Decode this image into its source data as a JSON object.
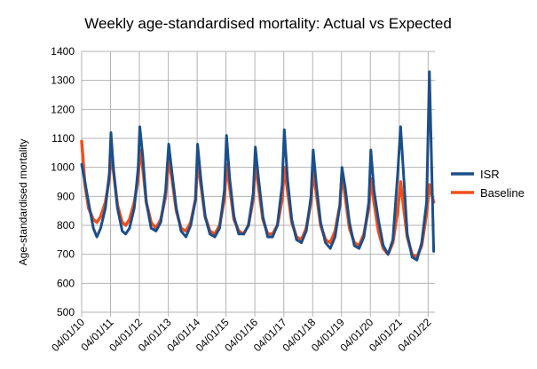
{
  "chart_data": {
    "type": "line",
    "title": "Weekly age-standardised mortality: Actual vs Expected",
    "xlabel": "",
    "ylabel": "Age-standardised mortality",
    "ylim": [
      500,
      1400
    ],
    "yticks": [
      500,
      600,
      700,
      800,
      900,
      1000,
      1100,
      1200,
      1300,
      1400
    ],
    "xticks": [
      "04/01/10",
      "04/01/11",
      "04/01/12",
      "04/01/13",
      "04/01/14",
      "04/01/15",
      "04/01/16",
      "04/01/17",
      "04/01/18",
      "04/01/19",
      "04/01/20",
      "04/01/21",
      "04/01/22"
    ],
    "xrange": [
      "2010-01-04",
      "2022-03-31"
    ],
    "grid": true,
    "legend_position": "right",
    "series": [
      {
        "name": "ISR",
        "color": "#1b4f8a",
        "points": [
          [
            "2010-01-04",
            1010
          ],
          [
            "2010-02-15",
            950
          ],
          [
            "2010-04-01",
            880
          ],
          [
            "2010-06-01",
            790
          ],
          [
            "2010-07-15",
            760
          ],
          [
            "2010-09-01",
            790
          ],
          [
            "2010-11-01",
            860
          ],
          [
            "2010-12-20",
            980
          ],
          [
            "2011-01-10",
            1120
          ],
          [
            "2011-02-15",
            980
          ],
          [
            "2011-04-01",
            860
          ],
          [
            "2011-06-01",
            780
          ],
          [
            "2011-07-15",
            770
          ],
          [
            "2011-09-01",
            790
          ],
          [
            "2011-11-01",
            860
          ],
          [
            "2011-12-20",
            1000
          ],
          [
            "2012-01-10",
            1140
          ],
          [
            "2012-02-15",
            1040
          ],
          [
            "2012-04-01",
            880
          ],
          [
            "2012-06-01",
            790
          ],
          [
            "2012-08-01",
            780
          ],
          [
            "2012-10-01",
            810
          ],
          [
            "2012-12-01",
            920
          ],
          [
            "2013-01-10",
            1080
          ],
          [
            "2013-02-20",
            980
          ],
          [
            "2013-04-15",
            860
          ],
          [
            "2013-06-15",
            780
          ],
          [
            "2013-08-15",
            760
          ],
          [
            "2013-10-15",
            800
          ],
          [
            "2013-12-15",
            890
          ],
          [
            "2014-01-10",
            1080
          ],
          [
            "2014-02-20",
            960
          ],
          [
            "2014-04-15",
            830
          ],
          [
            "2014-06-15",
            770
          ],
          [
            "2014-08-15",
            760
          ],
          [
            "2014-10-15",
            790
          ],
          [
            "2014-12-15",
            920
          ],
          [
            "2015-01-10",
            1110
          ],
          [
            "2015-02-20",
            960
          ],
          [
            "2015-04-15",
            830
          ],
          [
            "2015-06-15",
            770
          ],
          [
            "2015-08-15",
            770
          ],
          [
            "2015-10-15",
            800
          ],
          [
            "2015-12-15",
            910
          ],
          [
            "2016-01-10",
            1070
          ],
          [
            "2016-02-20",
            960
          ],
          [
            "2016-04-15",
            830
          ],
          [
            "2016-06-15",
            760
          ],
          [
            "2016-08-15",
            760
          ],
          [
            "2016-10-15",
            800
          ],
          [
            "2016-12-15",
            940
          ],
          [
            "2017-01-10",
            1130
          ],
          [
            "2017-02-20",
            960
          ],
          [
            "2017-04-15",
            820
          ],
          [
            "2017-06-15",
            750
          ],
          [
            "2017-08-15",
            740
          ],
          [
            "2017-10-15",
            780
          ],
          [
            "2017-12-15",
            900
          ],
          [
            "2018-01-10",
            1060
          ],
          [
            "2018-02-20",
            940
          ],
          [
            "2018-04-15",
            810
          ],
          [
            "2018-06-15",
            740
          ],
          [
            "2018-08-15",
            720
          ],
          [
            "2018-10-15",
            760
          ],
          [
            "2018-12-15",
            870
          ],
          [
            "2019-01-10",
            1000
          ],
          [
            "2019-02-20",
            930
          ],
          [
            "2019-04-15",
            810
          ],
          [
            "2019-06-15",
            730
          ],
          [
            "2019-08-15",
            720
          ],
          [
            "2019-10-15",
            760
          ],
          [
            "2019-12-15",
            880
          ],
          [
            "2020-01-10",
            1060
          ],
          [
            "2020-02-20",
            920
          ],
          [
            "2020-04-15",
            820
          ],
          [
            "2020-06-15",
            730
          ],
          [
            "2020-08-15",
            700
          ],
          [
            "2020-10-15",
            750
          ],
          [
            "2020-12-15",
            980
          ],
          [
            "2021-01-20",
            1140
          ],
          [
            "2021-03-01",
            970
          ],
          [
            "2021-04-15",
            770
          ],
          [
            "2021-06-15",
            690
          ],
          [
            "2021-08-15",
            680
          ],
          [
            "2021-10-15",
            740
          ],
          [
            "2021-12-15",
            880
          ],
          [
            "2022-01-20",
            1330
          ],
          [
            "2022-03-15",
            710
          ]
        ]
      },
      {
        "name": "Baseline",
        "color": "#f04f1c",
        "points": [
          [
            "2010-01-04",
            1090
          ],
          [
            "2010-02-15",
            940
          ],
          [
            "2010-04-01",
            860
          ],
          [
            "2010-06-01",
            820
          ],
          [
            "2010-07-15",
            810
          ],
          [
            "2010-09-01",
            830
          ],
          [
            "2010-11-01",
            880
          ],
          [
            "2010-12-20",
            960
          ],
          [
            "2011-01-10",
            1050
          ],
          [
            "2011-02-15",
            980
          ],
          [
            "2011-04-01",
            870
          ],
          [
            "2011-06-01",
            810
          ],
          [
            "2011-07-15",
            800
          ],
          [
            "2011-09-01",
            820
          ],
          [
            "2011-11-01",
            880
          ],
          [
            "2011-12-20",
            960
          ],
          [
            "2012-01-10",
            1060
          ],
          [
            "2012-02-15",
            1000
          ],
          [
            "2012-04-01",
            880
          ],
          [
            "2012-06-01",
            810
          ],
          [
            "2012-08-01",
            790
          ],
          [
            "2012-10-01",
            820
          ],
          [
            "2012-12-01",
            900
          ],
          [
            "2013-01-10",
            1030
          ],
          [
            "2013-02-20",
            960
          ],
          [
            "2013-04-15",
            850
          ],
          [
            "2013-06-15",
            790
          ],
          [
            "2013-08-15",
            780
          ],
          [
            "2013-10-15",
            810
          ],
          [
            "2013-12-15",
            890
          ],
          [
            "2014-01-10",
            1020
          ],
          [
            "2014-02-20",
            940
          ],
          [
            "2014-04-15",
            830
          ],
          [
            "2014-06-15",
            780
          ],
          [
            "2014-08-15",
            770
          ],
          [
            "2014-10-15",
            800
          ],
          [
            "2014-12-15",
            890
          ],
          [
            "2015-01-10",
            1010
          ],
          [
            "2015-02-20",
            930
          ],
          [
            "2015-04-15",
            820
          ],
          [
            "2015-06-15",
            780
          ],
          [
            "2015-08-15",
            770
          ],
          [
            "2015-10-15",
            800
          ],
          [
            "2015-12-15",
            890
          ],
          [
            "2016-01-10",
            1020
          ],
          [
            "2016-02-20",
            930
          ],
          [
            "2016-04-15",
            820
          ],
          [
            "2016-06-15",
            770
          ],
          [
            "2016-08-15",
            770
          ],
          [
            "2016-10-15",
            800
          ],
          [
            "2016-12-15",
            890
          ],
          [
            "2017-01-10",
            1000
          ],
          [
            "2017-02-20",
            920
          ],
          [
            "2017-04-15",
            810
          ],
          [
            "2017-06-15",
            760
          ],
          [
            "2017-08-15",
            750
          ],
          [
            "2017-10-15",
            790
          ],
          [
            "2017-12-15",
            880
          ],
          [
            "2018-01-10",
            990
          ],
          [
            "2018-02-20",
            910
          ],
          [
            "2018-04-15",
            800
          ],
          [
            "2018-06-15",
            750
          ],
          [
            "2018-08-15",
            740
          ],
          [
            "2018-10-15",
            780
          ],
          [
            "2018-12-15",
            870
          ],
          [
            "2019-01-10",
            980
          ],
          [
            "2019-02-20",
            900
          ],
          [
            "2019-04-15",
            790
          ],
          [
            "2019-06-15",
            740
          ],
          [
            "2019-08-15",
            730
          ],
          [
            "2019-10-15",
            770
          ],
          [
            "2019-12-15",
            860
          ],
          [
            "2020-01-10",
            960
          ],
          [
            "2020-02-20",
            880
          ],
          [
            "2020-04-15",
            780
          ],
          [
            "2020-06-15",
            720
          ],
          [
            "2020-08-15",
            700
          ],
          [
            "2020-10-15",
            740
          ],
          [
            "2020-12-15",
            850
          ],
          [
            "2021-01-20",
            950
          ],
          [
            "2021-03-01",
            860
          ],
          [
            "2021-04-15",
            760
          ],
          [
            "2021-06-15",
            700
          ],
          [
            "2021-08-15",
            690
          ],
          [
            "2021-10-15",
            730
          ],
          [
            "2021-12-15",
            840
          ],
          [
            "2022-01-20",
            940
          ],
          [
            "2022-03-15",
            880
          ]
        ]
      }
    ]
  }
}
